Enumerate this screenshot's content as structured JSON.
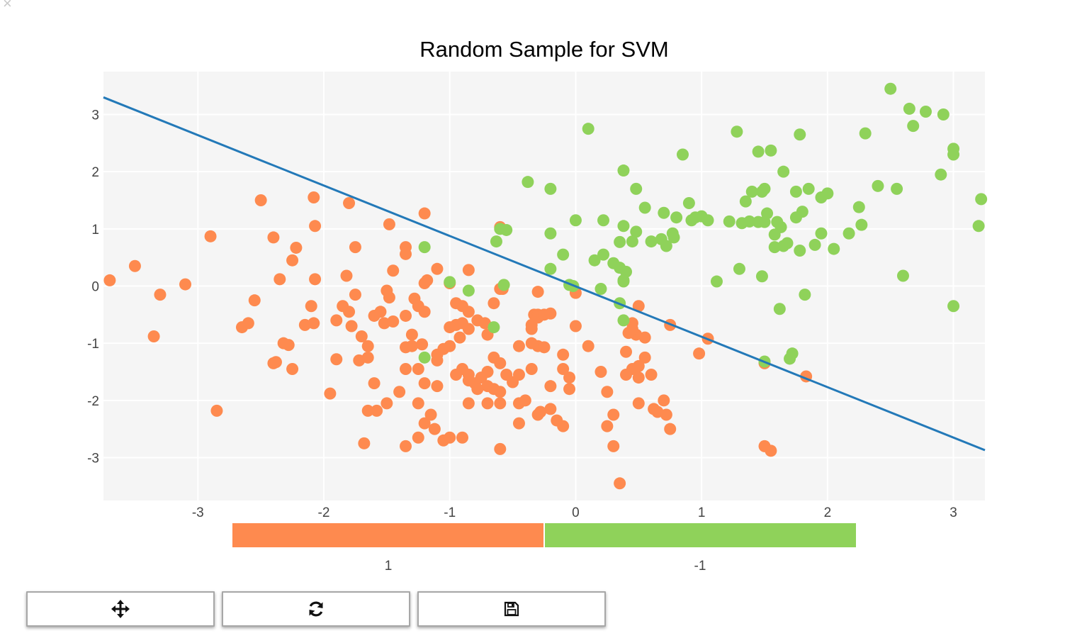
{
  "window": {
    "close_icon": "close-icon"
  },
  "colors": {
    "class_pos": "#fe8a4f",
    "class_neg": "#8fd25a",
    "boundary": "#2379b8",
    "plot_bg": "#f5f5f5",
    "grid": "#ffffff"
  },
  "chart_data": {
    "type": "scatter",
    "title": "Random Sample for SVM",
    "xlabel": "",
    "ylabel": "",
    "xlim": [
      -3.75,
      3.25
    ],
    "ylim": [
      -3.75,
      3.75
    ],
    "xticks": [
      -3,
      -2,
      -1,
      0,
      1,
      2,
      3
    ],
    "yticks": [
      -3,
      -2,
      -1,
      0,
      1,
      2,
      3
    ],
    "grid": true,
    "legend": {
      "placement": "bottom",
      "labels": [
        "1",
        "-1"
      ]
    },
    "boundary_line": {
      "x": [
        -3.75,
        3.25
      ],
      "y": [
        3.3,
        -2.87
      ]
    },
    "series": [
      {
        "name": "1",
        "color": "#fe8a4f",
        "points": [
          [
            -3.7,
            0.1
          ],
          [
            -3.5,
            0.35
          ],
          [
            -3.3,
            -0.15
          ],
          [
            -3.35,
            -0.88
          ],
          [
            -3.1,
            0.03
          ],
          [
            -2.9,
            0.87
          ],
          [
            -2.85,
            -2.18
          ],
          [
            -2.5,
            1.5
          ],
          [
            -2.4,
            0.85
          ],
          [
            -2.35,
            0.12
          ],
          [
            -2.25,
            0.45
          ],
          [
            -2.22,
            0.67
          ],
          [
            -2.55,
            -0.25
          ],
          [
            -2.6,
            -0.65
          ],
          [
            -2.65,
            -0.72
          ],
          [
            -2.4,
            -1.35
          ],
          [
            -2.38,
            -1.33
          ],
          [
            -2.25,
            -1.45
          ],
          [
            -2.28,
            -1.03
          ],
          [
            -2.32,
            -1.0
          ],
          [
            -2.08,
            1.55
          ],
          [
            -2.07,
            1.05
          ],
          [
            -2.1,
            -0.35
          ],
          [
            -2.08,
            -0.65
          ],
          [
            -2.15,
            -0.68
          ],
          [
            -1.9,
            -0.6
          ],
          [
            -2.07,
            0.12
          ],
          [
            -1.8,
            1.45
          ],
          [
            -1.75,
            0.68
          ],
          [
            -1.82,
            0.18
          ],
          [
            -1.75,
            -0.15
          ],
          [
            -1.85,
            -0.35
          ],
          [
            -1.8,
            -0.45
          ],
          [
            -1.78,
            -0.7
          ],
          [
            -1.7,
            -0.88
          ],
          [
            -1.65,
            -1.05
          ],
          [
            -1.65,
            -1.25
          ],
          [
            -1.72,
            -1.3
          ],
          [
            -1.9,
            -1.28
          ],
          [
            -1.95,
            -1.88
          ],
          [
            -1.6,
            -0.52
          ],
          [
            -1.55,
            -0.45
          ],
          [
            -1.52,
            -0.65
          ],
          [
            -1.45,
            -0.62
          ],
          [
            -1.48,
            -0.2
          ],
          [
            -1.5,
            -0.08
          ],
          [
            -1.45,
            0.27
          ],
          [
            -1.48,
            1.08
          ],
          [
            -1.35,
            0.68
          ],
          [
            -1.35,
            0.56
          ],
          [
            -1.2,
            1.27
          ],
          [
            -1.35,
            -0.52
          ],
          [
            -1.28,
            -0.22
          ],
          [
            -1.25,
            -0.35
          ],
          [
            -1.3,
            -0.85
          ],
          [
            -1.3,
            -1.05
          ],
          [
            -1.35,
            -1.07
          ],
          [
            -1.22,
            -1.02
          ],
          [
            -1.25,
            -1.45
          ],
          [
            -1.35,
            -1.45
          ],
          [
            -1.2,
            -0.45
          ],
          [
            -1.2,
            0.05
          ],
          [
            -1.18,
            0.1
          ],
          [
            -1.1,
            0.3
          ],
          [
            -1.0,
            0.05
          ],
          [
            -0.95,
            -0.3
          ],
          [
            -0.9,
            -0.35
          ],
          [
            -0.85,
            -0.45
          ],
          [
            -0.9,
            -0.65
          ],
          [
            -0.95,
            -0.68
          ],
          [
            -0.85,
            -0.75
          ],
          [
            -0.78,
            -0.6
          ],
          [
            -0.72,
            -0.65
          ],
          [
            -0.7,
            -0.85
          ],
          [
            -0.65,
            -0.3
          ],
          [
            -0.6,
            -0.05
          ],
          [
            -0.85,
            0.28
          ],
          [
            -0.6,
            1.03
          ],
          [
            -1.0,
            -0.72
          ],
          [
            -0.92,
            -0.9
          ],
          [
            -1.05,
            -1.1
          ],
          [
            -1.1,
            -1.2
          ],
          [
            -1.1,
            -1.3
          ],
          [
            -1.0,
            -1.05
          ],
          [
            -0.9,
            -1.45
          ],
          [
            -0.85,
            -1.55
          ],
          [
            -0.8,
            -1.7
          ],
          [
            -0.75,
            -1.6
          ],
          [
            -0.7,
            -1.5
          ],
          [
            -0.65,
            -1.25
          ],
          [
            -0.6,
            -1.35
          ],
          [
            -0.55,
            -1.55
          ],
          [
            -0.5,
            -1.68
          ],
          [
            -0.45,
            -1.55
          ],
          [
            -0.35,
            -1.45
          ],
          [
            -0.45,
            -1.05
          ],
          [
            -0.35,
            -1.0
          ],
          [
            -0.3,
            -1.05
          ],
          [
            -0.25,
            -1.07
          ],
          [
            -0.35,
            -0.75
          ],
          [
            -0.35,
            -0.68
          ],
          [
            -0.33,
            -0.5
          ],
          [
            -0.3,
            -0.5
          ],
          [
            -0.3,
            -0.55
          ],
          [
            -0.25,
            -0.5
          ],
          [
            -0.2,
            -0.48
          ],
          [
            -0.3,
            -0.1
          ],
          [
            -0.58,
            -0.05
          ],
          [
            -0.95,
            -1.55
          ],
          [
            -0.85,
            -1.65
          ],
          [
            -0.78,
            -1.8
          ],
          [
            -0.7,
            -1.75
          ],
          [
            -0.65,
            -1.8
          ],
          [
            -0.6,
            -1.85
          ],
          [
            -1.2,
            -1.7
          ],
          [
            -1.1,
            -1.75
          ],
          [
            -1.6,
            -1.7
          ],
          [
            -1.4,
            -1.85
          ],
          [
            -1.5,
            -2.05
          ],
          [
            -1.25,
            -2.05
          ],
          [
            -1.15,
            -2.25
          ],
          [
            -1.2,
            -2.4
          ],
          [
            -1.12,
            -2.5
          ],
          [
            -1.05,
            -2.7
          ],
          [
            -1.0,
            -2.65
          ],
          [
            -0.9,
            -2.65
          ],
          [
            -0.85,
            -2.05
          ],
          [
            -0.7,
            -2.05
          ],
          [
            -0.6,
            -2.05
          ],
          [
            -0.45,
            -2.05
          ],
          [
            -0.4,
            -2.0
          ],
          [
            -0.3,
            -2.25
          ],
          [
            -0.28,
            -2.2
          ],
          [
            -0.2,
            -2.15
          ],
          [
            -0.15,
            -2.35
          ],
          [
            -0.1,
            -2.45
          ],
          [
            -0.45,
            -2.4
          ],
          [
            -1.35,
            -2.8
          ],
          [
            -1.25,
            -2.65
          ],
          [
            -1.68,
            -2.75
          ],
          [
            -1.65,
            -2.18
          ],
          [
            -1.58,
            -2.18
          ],
          [
            -0.6,
            -2.85
          ],
          [
            -0.1,
            -1.45
          ],
          [
            -0.05,
            -1.6
          ],
          [
            -0.05,
            -1.8
          ],
          [
            -0.1,
            -1.2
          ],
          [
            -0.2,
            -1.75
          ],
          [
            0.0,
            -0.7
          ],
          [
            0.1,
            -1.05
          ],
          [
            0.2,
            -1.5
          ],
          [
            0.25,
            -1.85
          ],
          [
            0.3,
            -2.25
          ],
          [
            0.25,
            -2.45
          ],
          [
            0.3,
            -2.8
          ],
          [
            0.35,
            -3.45
          ],
          [
            0.4,
            -1.15
          ],
          [
            0.45,
            -1.45
          ],
          [
            0.5,
            -1.4
          ],
          [
            0.5,
            -1.6
          ],
          [
            0.55,
            -1.25
          ],
          [
            0.6,
            -1.55
          ],
          [
            0.5,
            -2.05
          ],
          [
            0.62,
            -2.15
          ],
          [
            0.65,
            -2.2
          ],
          [
            0.7,
            -2.0
          ],
          [
            0.72,
            -2.25
          ],
          [
            0.75,
            -2.5
          ],
          [
            0.55,
            -0.9
          ],
          [
            0.48,
            -0.85
          ],
          [
            0.5,
            -0.35
          ],
          [
            0.45,
            -0.65
          ],
          [
            0.42,
            -0.82
          ],
          [
            0.45,
            -0.75
          ],
          [
            0.75,
            -0.68
          ],
          [
            0.98,
            -1.18
          ],
          [
            1.05,
            -0.92
          ],
          [
            1.5,
            -1.35
          ],
          [
            1.5,
            -2.8
          ],
          [
            1.55,
            -2.88
          ],
          [
            1.83,
            -1.58
          ],
          [
            0.0,
            -0.12
          ],
          [
            0.4,
            -1.55
          ]
        ]
      },
      {
        "name": "-1",
        "color": "#8fd25a",
        "points": [
          [
            0.1,
            2.75
          ],
          [
            -0.38,
            1.82
          ],
          [
            -0.2,
            1.7
          ],
          [
            0.38,
            2.02
          ],
          [
            0.48,
            1.7
          ],
          [
            0.55,
            1.37
          ],
          [
            0.85,
            2.3
          ],
          [
            0.7,
            1.28
          ],
          [
            0.9,
            1.45
          ],
          [
            0.92,
            1.15
          ],
          [
            0.95,
            1.2
          ],
          [
            1.05,
            1.15
          ],
          [
            1.28,
            2.7
          ],
          [
            1.45,
            2.35
          ],
          [
            1.55,
            2.37
          ],
          [
            1.78,
            2.65
          ],
          [
            2.3,
            2.67
          ],
          [
            2.5,
            3.45
          ],
          [
            2.65,
            3.1
          ],
          [
            2.68,
            2.8
          ],
          [
            2.78,
            3.05
          ],
          [
            2.92,
            3.0
          ],
          [
            3.0,
            2.4
          ],
          [
            3.0,
            2.3
          ],
          [
            2.9,
            1.95
          ],
          [
            3.2,
            1.05
          ],
          [
            3.22,
            1.52
          ],
          [
            3.0,
            -0.35
          ],
          [
            2.6,
            0.18
          ],
          [
            2.55,
            1.7
          ],
          [
            2.4,
            1.75
          ],
          [
            2.25,
            1.38
          ],
          [
            2.27,
            1.07
          ],
          [
            2.17,
            0.92
          ],
          [
            2.05,
            0.65
          ],
          [
            1.95,
            0.92
          ],
          [
            1.9,
            0.72
          ],
          [
            2.0,
            1.62
          ],
          [
            1.95,
            1.55
          ],
          [
            1.85,
            1.7
          ],
          [
            1.8,
            1.3
          ],
          [
            1.75,
            1.65
          ],
          [
            1.75,
            1.2
          ],
          [
            1.65,
            2.0
          ],
          [
            1.63,
            1.03
          ],
          [
            1.6,
            1.12
          ],
          [
            1.58,
            0.68
          ],
          [
            1.52,
            1.27
          ],
          [
            1.5,
            1.7
          ],
          [
            1.48,
            1.65
          ],
          [
            1.4,
            1.65
          ],
          [
            1.35,
            1.48
          ],
          [
            1.32,
            1.1
          ],
          [
            1.22,
            1.13
          ],
          [
            1.38,
            1.13
          ],
          [
            1.45,
            1.12
          ],
          [
            1.5,
            1.12
          ],
          [
            1.58,
            0.9
          ],
          [
            1.65,
            0.7
          ],
          [
            1.68,
            0.75
          ],
          [
            1.78,
            0.62
          ],
          [
            1.62,
            -0.4
          ],
          [
            1.82,
            -0.15
          ],
          [
            1.48,
            0.17
          ],
          [
            1.3,
            0.3
          ],
          [
            1.12,
            0.08
          ],
          [
            1.0,
            1.22
          ],
          [
            0.8,
            1.2
          ],
          [
            0.77,
            0.92
          ],
          [
            0.72,
            0.7
          ],
          [
            0.68,
            0.82
          ],
          [
            0.6,
            0.78
          ],
          [
            0.48,
            0.95
          ],
          [
            0.45,
            0.78
          ],
          [
            0.35,
            0.77
          ],
          [
            0.38,
            1.05
          ],
          [
            0.22,
            1.15
          ],
          [
            0.0,
            1.15
          ],
          [
            -0.2,
            0.92
          ],
          [
            -0.1,
            0.55
          ],
          [
            -0.2,
            0.3
          ],
          [
            0.15,
            0.45
          ],
          [
            0.22,
            0.55
          ],
          [
            0.3,
            0.4
          ],
          [
            0.35,
            0.32
          ],
          [
            0.4,
            0.25
          ],
          [
            0.38,
            0.1
          ],
          [
            0.38,
            0.08
          ],
          [
            0.2,
            -0.05
          ],
          [
            -0.05,
            0.02
          ],
          [
            -0.02,
            0.0
          ],
          [
            0.35,
            -0.3
          ],
          [
            0.38,
            -0.6
          ],
          [
            0.78,
            0.85
          ],
          [
            -0.55,
            0.98
          ],
          [
            -0.6,
            1.0
          ],
          [
            -0.63,
            0.78
          ],
          [
            -1.2,
            0.68
          ],
          [
            -1.0,
            0.07
          ],
          [
            -0.85,
            -0.08
          ],
          [
            -0.57,
            0.02
          ],
          [
            -0.65,
            -0.72
          ],
          [
            -1.2,
            -1.25
          ],
          [
            1.5,
            -1.32
          ],
          [
            1.72,
            -1.18
          ],
          [
            1.7,
            -1.27
          ]
        ]
      }
    ]
  },
  "toolbar": {
    "pan_icon": "move-arrows-icon",
    "refresh_icon": "refresh-icon",
    "save_icon": "save-disk-icon"
  }
}
